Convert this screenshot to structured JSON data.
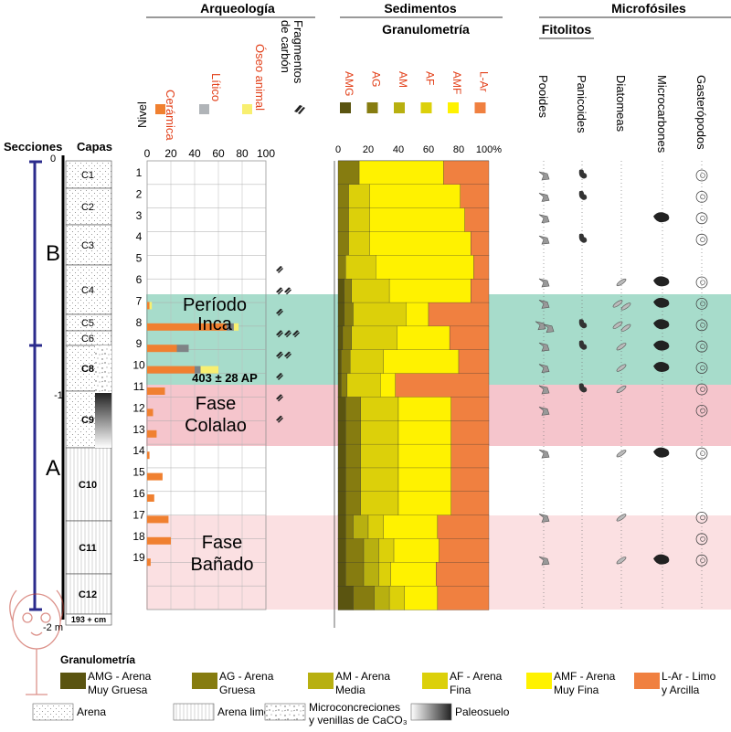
{
  "headers": {
    "arqueologia": "Arqueología",
    "sedimentos": "Sedimentos",
    "granulometria": "Granulometría",
    "microfosiles": "Microfósiles",
    "fitolitos": "Fitolitos",
    "secciones": "Secciones",
    "capas": "Capas",
    "nivel": "Nivel"
  },
  "arch_columns": [
    {
      "label": "Cerámica",
      "color": "#f08030"
    },
    {
      "label": "Lítico",
      "color": "#b0b4b8"
    },
    {
      "label": "Óseo animal",
      "color": "#f8ef70"
    },
    {
      "label": "Fragmentos de carbón",
      "color": "#222222"
    }
  ],
  "arch_axis": [
    "0",
    "20",
    "40",
    "60",
    "80",
    "100"
  ],
  "gran_legend_top": [
    {
      "label": "AMG",
      "color": "#5a5410"
    },
    {
      "label": "AG",
      "color": "#867c10"
    },
    {
      "label": "AM",
      "color": "#b8b010"
    },
    {
      "label": "AF",
      "color": "#dcd00a"
    },
    {
      "label": "AMF",
      "color": "#fff200"
    },
    {
      "label": "L-Ar",
      "color": "#f08040"
    }
  ],
  "gran_axis": [
    "0",
    "20",
    "40",
    "60",
    "80",
    "100%"
  ],
  "micro_columns": [
    "Pooides",
    "Panicoides",
    "Diatomeas",
    "Microcarbones",
    "Gasterópodos"
  ],
  "sections": [
    {
      "label": "B"
    },
    {
      "label": "A"
    }
  ],
  "depth_labels": [
    "0",
    "-1",
    "-2 m"
  ],
  "capas": [
    "C1",
    "C2",
    "C3",
    "C4",
    "C5",
    "C6",
    "C8",
    "C9",
    "C10",
    "C11",
    "C12"
  ],
  "base_label": "193 + cm",
  "periods": [
    {
      "name": "Período Inca",
      "line1": "Período",
      "line2": "Inca",
      "color": "#a7dccb"
    },
    {
      "name": "Fase Colalao",
      "line1": "Fase",
      "line2": "Colalao",
      "color": "#f5c5cc"
    },
    {
      "name": "Fase Bañado",
      "line1": "Fase",
      "line2": "Bañado",
      "color": "#fbe0e2"
    }
  ],
  "date_label": "403 ± 28 AP",
  "legend": {
    "title": "Granulometría",
    "items": [
      {
        "code": "AMG - Arena",
        "desc": "Muy Gruesa",
        "color": "#5a5410"
      },
      {
        "code": "AG - Arena",
        "desc": "Gruesa",
        "color": "#867c10"
      },
      {
        "code": "AM - Arena",
        "desc": "Media",
        "color": "#b8b010"
      },
      {
        "code": "AF - Arena",
        "desc": "Fina",
        "color": "#dcd00a"
      },
      {
        "code": "AMF - Arena",
        "desc": "Muy Fina",
        "color": "#fff200"
      },
      {
        "code": "L-Ar - Limo",
        "desc": "y Arcilla",
        "color": "#f08040"
      }
    ],
    "textures": [
      {
        "line1": "Arena",
        "line2": ""
      },
      {
        "line1": "Arena limosa",
        "line2": ""
      },
      {
        "line1": "Microconcreciones",
        "line2": "y venillas de CaCO₃"
      },
      {
        "line1": "Paleosuelo",
        "line2": ""
      }
    ]
  },
  "chart_data": {
    "type": "stacked-profile",
    "levels": [
      1,
      2,
      3,
      4,
      5,
      6,
      7,
      8,
      9,
      10,
      11,
      12,
      13,
      14,
      15,
      16,
      17,
      18,
      19
    ],
    "archaeology": {
      "xlim": [
        0,
        100
      ],
      "ceramica": [
        0,
        0,
        0,
        0,
        0,
        0,
        2,
        67,
        25,
        40,
        15,
        5,
        8,
        2,
        13,
        6,
        18,
        20,
        3
      ],
      "litico": [
        0,
        0,
        0,
        0,
        0,
        0,
        0,
        6,
        10,
        5,
        0,
        0,
        0,
        0,
        0,
        0,
        0,
        0,
        0
      ],
      "oseo": [
        0,
        0,
        0,
        0,
        0,
        0,
        2,
        4,
        0,
        15,
        0,
        0,
        0,
        0,
        0,
        0,
        0,
        0,
        0
      ],
      "carbon_marks": [
        0,
        0,
        0,
        0,
        0,
        1,
        2,
        1,
        3,
        2,
        1,
        1,
        1,
        0,
        0,
        0,
        0,
        0,
        0
      ]
    },
    "granulometry": {
      "xlim": [
        0,
        100
      ],
      "series": [
        {
          "name": "AMG",
          "values": [
            0,
            0,
            0,
            0,
            0,
            4,
            4,
            3,
            2,
            2,
            5,
            5,
            5,
            5,
            5,
            5,
            5,
            5,
            10
          ]
        },
        {
          "name": "AG",
          "values": [
            14,
            7,
            7,
            7,
            5,
            5,
            6,
            6,
            6,
            4,
            10,
            10,
            10,
            10,
            10,
            5,
            12,
            12,
            14
          ]
        },
        {
          "name": "AM",
          "values": [
            0,
            0,
            0,
            0,
            0,
            0,
            0,
            0,
            0,
            0,
            0,
            0,
            0,
            0,
            0,
            10,
            10,
            10,
            10
          ]
        },
        {
          "name": "AF",
          "values": [
            0,
            14,
            14,
            14,
            20,
            25,
            35,
            30,
            22,
            22,
            25,
            25,
            25,
            25,
            25,
            10,
            10,
            8,
            10
          ]
        },
        {
          "name": "AMF",
          "values": [
            56,
            60,
            63,
            67,
            65,
            54,
            15,
            35,
            50,
            10,
            35,
            35,
            35,
            35,
            35,
            36,
            30,
            30,
            22
          ]
        },
        {
          "name": "L-Ar",
          "values": [
            30,
            19,
            16,
            12,
            10,
            12,
            40,
            26,
            20,
            62,
            25,
            25,
            25,
            25,
            25,
            34,
            33,
            35,
            34
          ]
        }
      ]
    },
    "microfossils": {
      "pooides": [
        1,
        1,
        1,
        1,
        0,
        1,
        1,
        2,
        1,
        1,
        1,
        1,
        0,
        1,
        0,
        0,
        1,
        0,
        1
      ],
      "panicoides": [
        1,
        1,
        0,
        1,
        0,
        0,
        0,
        1,
        1,
        0,
        1,
        0,
        0,
        0,
        0,
        0,
        0,
        0,
        0
      ],
      "diatomeas": [
        0,
        0,
        0,
        0,
        0,
        1,
        2,
        2,
        1,
        1,
        1,
        0,
        0,
        1,
        0,
        0,
        1,
        0,
        1
      ],
      "microcarbones": [
        0,
        0,
        1,
        0,
        0,
        1,
        1,
        1,
        1,
        1,
        0,
        0,
        0,
        1,
        0,
        0,
        0,
        0,
        1
      ],
      "gasteropodos": [
        1,
        1,
        1,
        1,
        0,
        1,
        1,
        1,
        1,
        1,
        1,
        1,
        0,
        1,
        0,
        0,
        1,
        1,
        1
      ]
    }
  }
}
